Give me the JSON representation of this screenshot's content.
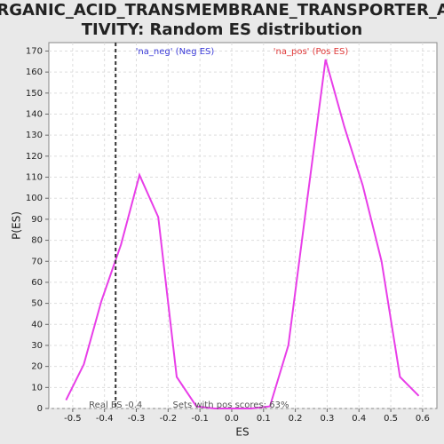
{
  "chart_data": {
    "type": "line",
    "title_lines": [
      "ORGANIC_ACID_TRANSMEMBRANE_TRANSPORTER_AC",
      "TIVITY: Random ES distribution"
    ],
    "x_label": "ES",
    "y_label": "P(ES)",
    "neg_label": "'na_neg' (Neg ES)",
    "neg_color": "#3b3bd8",
    "pos_label": "'na_pos' (Pos ES)",
    "pos_color": "#e03a3a",
    "pos_scores_label": "Sets with pos scores: 63%",
    "real_es": {
      "value": -0.365,
      "label": "Real ES -0.4"
    },
    "x": [
      -0.521,
      -0.465,
      -0.41,
      -0.348,
      -0.29,
      -0.231,
      -0.173,
      -0.111,
      -0.053,
      0.006,
      0.061,
      0.12,
      0.178,
      0.237,
      0.295,
      0.354,
      0.412,
      0.471,
      0.529,
      0.588
    ],
    "series": [
      {
        "color": "#e83ee8",
        "values": [
          4,
          21,
          51,
          78,
          111,
          91,
          15,
          1,
          0,
          0,
          0,
          1,
          30,
          99,
          166,
          134,
          106,
          70,
          15,
          6
        ]
      }
    ],
    "xlim": [
      -0.575,
      0.645
    ],
    "ylim": [
      0,
      174
    ],
    "xticks": [
      -0.5,
      -0.4,
      -0.3,
      -0.2,
      -0.1,
      {
        "value": 0,
        "label": "0.0"
      },
      0.1,
      0.2,
      0.3,
      0.4,
      0.5,
      0.6
    ],
    "yticks": [
      0,
      10,
      20,
      30,
      40,
      50,
      60,
      70,
      80,
      90,
      100,
      110,
      120,
      130,
      140,
      150,
      160,
      170
    ],
    "grid": true
  }
}
